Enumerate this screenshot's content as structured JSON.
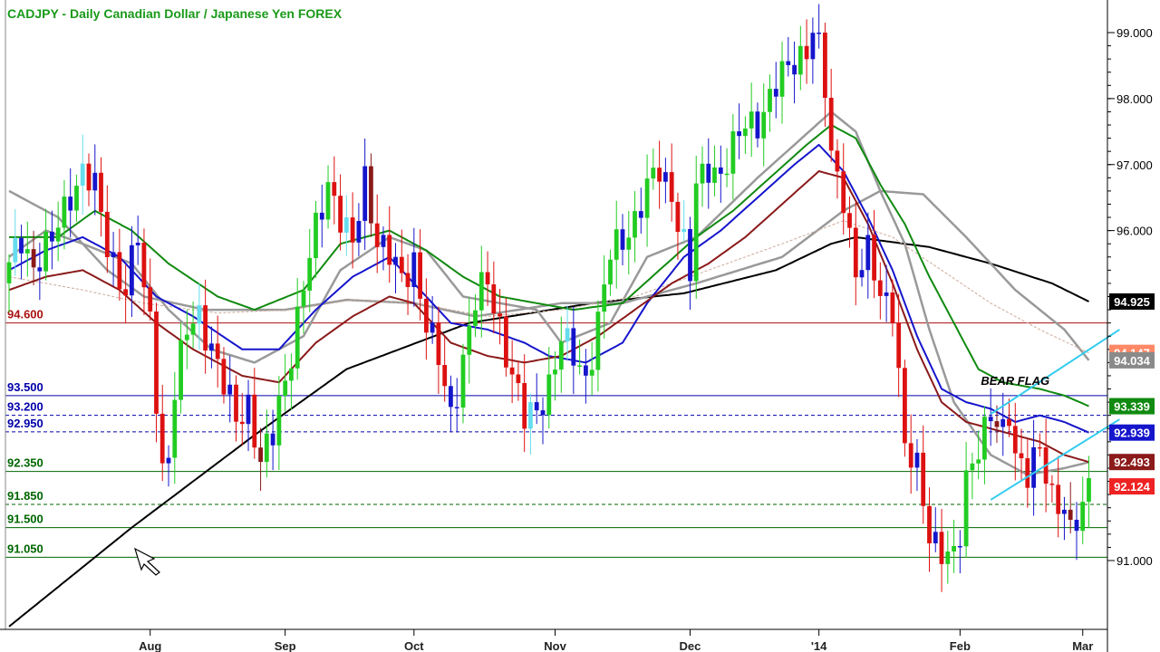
{
  "chart_data": {
    "type": "candlestick",
    "title": "CADJPY - Daily  Canadian Dollar / Japanese Yen  FOREX",
    "ylim": [
      90.0,
      99.2
    ],
    "y_ticks": [
      {
        "value": 99.0,
        "label": "99.000"
      },
      {
        "value": 98.0,
        "label": "98.000"
      },
      {
        "value": 97.0,
        "label": "97.000"
      },
      {
        "value": 96.0,
        "label": "96.000"
      },
      {
        "value": 91.0,
        "label": "91.000"
      }
    ],
    "x_ticks": [
      {
        "index": 23,
        "label": "Aug"
      },
      {
        "index": 45,
        "label": "Sep"
      },
      {
        "index": 66,
        "label": "Oct"
      },
      {
        "index": 89,
        "label": "Nov"
      },
      {
        "index": 111,
        "label": "Dec"
      },
      {
        "index": 132,
        "label": "'14"
      },
      {
        "index": 155,
        "label": "Feb"
      },
      {
        "index": 175,
        "label": "Mar"
      }
    ],
    "grid": false,
    "horizontal_levels": [
      {
        "value": 94.6,
        "label": "94.600",
        "color": "#aa1111",
        "style": "solid"
      },
      {
        "value": 93.5,
        "label": "93.500",
        "color": "#0000aa",
        "style": "solid"
      },
      {
        "value": 93.2,
        "label": "93.200",
        "color": "#0000aa",
        "style": "dashed"
      },
      {
        "value": 92.95,
        "label": "92.950",
        "color": "#0000aa",
        "style": "dashed"
      },
      {
        "value": 92.35,
        "label": "92.350",
        "color": "#006600",
        "style": "solid"
      },
      {
        "value": 91.85,
        "label": "91.850",
        "color": "#006600",
        "style": "dashed"
      },
      {
        "value": 91.5,
        "label": "91.500",
        "color": "#006600",
        "style": "solid"
      },
      {
        "value": 91.05,
        "label": "91.050",
        "color": "#006600",
        "style": "solid"
      }
    ],
    "price_tags": [
      {
        "value": 94.925,
        "label": "94.925",
        "color": "#000000"
      },
      {
        "value": 94.147,
        "label": "94.147",
        "color": "#ff8866"
      },
      {
        "value": 94.034,
        "label": "94.034",
        "color": "#8a8a8a"
      },
      {
        "value": 93.339,
        "label": "93.339",
        "color": "#108a10"
      },
      {
        "value": 92.939,
        "label": "92.939",
        "color": "#1515cc"
      },
      {
        "value": 92.493,
        "label": "92.493",
        "color": "#8b1a1a"
      },
      {
        "value": 92.124,
        "label": "92.124",
        "color": "#ee2222"
      }
    ],
    "annotations": [
      {
        "text": "BEAR FLAG",
        "index": 164,
        "value": 93.66
      }
    ],
    "channel": [
      {
        "from": [
          160,
          93.22
        ],
        "to": [
          181,
          94.5
        ],
        "color": "#33ccee"
      },
      {
        "from": [
          160,
          91.92
        ],
        "to": [
          181,
          93.14
        ],
        "color": "#33ccee"
      }
    ],
    "candle_colors": {
      "up_strong": "#22cc22",
      "up_weak": "#66ddee",
      "down_strong": "#dd1111",
      "down_weak": "#8b1a1a",
      "neutral": "#1515cc"
    },
    "close_anchors": [
      [
        0,
        95.4
      ],
      [
        2,
        95.9
      ],
      [
        4,
        95.5
      ],
      [
        7,
        95.8
      ],
      [
        10,
        96.6
      ],
      [
        12,
        96.9
      ],
      [
        14,
        96.6
      ],
      [
        16,
        95.8
      ],
      [
        19,
        95.1
      ],
      [
        21,
        95.9
      ],
      [
        22,
        95.0
      ],
      [
        23,
        94.7
      ],
      [
        25,
        92.4
      ],
      [
        26,
        92.6
      ],
      [
        27,
        93.5
      ],
      [
        29,
        94.5
      ],
      [
        31,
        94.8
      ],
      [
        33,
        94.2
      ],
      [
        35,
        93.6
      ],
      [
        37,
        93.2
      ],
      [
        39,
        93.4
      ],
      [
        41,
        92.4
      ],
      [
        43,
        92.9
      ],
      [
        44,
        93.4
      ],
      [
        46,
        94.2
      ],
      [
        48,
        95.1
      ],
      [
        50,
        96.0
      ],
      [
        52,
        96.8
      ],
      [
        54,
        96.2
      ],
      [
        56,
        95.7
      ],
      [
        58,
        96.8
      ],
      [
        60,
        95.9
      ],
      [
        62,
        95.6
      ],
      [
        64,
        95.2
      ],
      [
        66,
        95.6
      ],
      [
        68,
        94.6
      ],
      [
        70,
        94.0
      ],
      [
        72,
        93.2
      ],
      [
        74,
        94.1
      ],
      [
        76,
        94.9
      ],
      [
        78,
        95.2
      ],
      [
        80,
        94.6
      ],
      [
        82,
        93.8
      ],
      [
        84,
        93.1
      ],
      [
        86,
        93.3
      ],
      [
        88,
        93.7
      ],
      [
        90,
        94.3
      ],
      [
        92,
        94.1
      ],
      [
        94,
        93.8
      ],
      [
        96,
        94.6
      ],
      [
        98,
        95.6
      ],
      [
        100,
        95.9
      ],
      [
        102,
        96.2
      ],
      [
        104,
        96.6
      ],
      [
        106,
        96.9
      ],
      [
        108,
        96.6
      ],
      [
        110,
        95.8
      ],
      [
        111,
        95.3
      ],
      [
        112,
        96.6
      ],
      [
        114,
        97.0
      ],
      [
        116,
        96.9
      ],
      [
        118,
        97.2
      ],
      [
        120,
        97.6
      ],
      [
        122,
        97.7
      ],
      [
        124,
        98.0
      ],
      [
        126,
        98.3
      ],
      [
        128,
        98.6
      ],
      [
        130,
        98.8
      ],
      [
        131,
        99.05
      ],
      [
        132,
        98.7
      ],
      [
        133,
        98.1
      ],
      [
        134,
        97.1
      ],
      [
        136,
        96.6
      ],
      [
        138,
        95.3
      ],
      [
        140,
        95.6
      ],
      [
        142,
        95.1
      ],
      [
        144,
        94.9
      ],
      [
        145,
        93.8
      ],
      [
        146,
        92.6
      ],
      [
        148,
        92.4
      ],
      [
        150,
        91.5
      ],
      [
        152,
        91.1
      ],
      [
        154,
        90.95
      ],
      [
        155,
        91.4
      ],
      [
        156,
        92.3
      ],
      [
        158,
        92.8
      ],
      [
        160,
        93.1
      ],
      [
        162,
        92.9
      ],
      [
        163,
        93.3
      ],
      [
        164,
        92.7
      ],
      [
        166,
        92.3
      ],
      [
        168,
        92.6
      ],
      [
        170,
        92.0
      ],
      [
        172,
        91.9
      ],
      [
        173,
        91.4
      ],
      [
        175,
        91.7
      ],
      [
        176,
        92.12
      ]
    ],
    "moving_averages": [
      {
        "color": "#000000",
        "width": 2,
        "points": [
          [
            0,
            90.0
          ],
          [
            20,
            91.5
          ],
          [
            40,
            92.9
          ],
          [
            55,
            93.9
          ],
          [
            75,
            94.6
          ],
          [
            95,
            94.9
          ],
          [
            110,
            95.05
          ],
          [
            125,
            95.4
          ],
          [
            134,
            95.8
          ],
          [
            138,
            95.9
          ],
          [
            150,
            95.75
          ],
          [
            160,
            95.5
          ],
          [
            170,
            95.2
          ],
          [
            176,
            94.925
          ]
        ]
      },
      {
        "color": "#999999",
        "width": 2.5,
        "points": [
          [
            0,
            96.6
          ],
          [
            8,
            96.2
          ],
          [
            16,
            95.4
          ],
          [
            22,
            95.0
          ],
          [
            32,
            94.8
          ],
          [
            45,
            94.8
          ],
          [
            55,
            94.95
          ],
          [
            66,
            94.9
          ],
          [
            76,
            94.7
          ],
          [
            90,
            94.9
          ],
          [
            100,
            94.9
          ],
          [
            112,
            95.2
          ],
          [
            126,
            95.6
          ],
          [
            136,
            96.3
          ],
          [
            142,
            96.6
          ],
          [
            149,
            96.55
          ],
          [
            156,
            95.9
          ],
          [
            164,
            95.1
          ],
          [
            172,
            94.5
          ],
          [
            176,
            94.034
          ]
        ]
      },
      {
        "color": "#999999",
        "width": 2.5,
        "points": [
          [
            0,
            95.6
          ],
          [
            6,
            96.0
          ],
          [
            12,
            95.8
          ],
          [
            20,
            95.5
          ],
          [
            26,
            94.8
          ],
          [
            33,
            94.2
          ],
          [
            40,
            94.0
          ],
          [
            48,
            94.4
          ],
          [
            54,
            95.4
          ],
          [
            62,
            95.9
          ],
          [
            68,
            95.7
          ],
          [
            74,
            95.0
          ],
          [
            80,
            94.9
          ],
          [
            86,
            94.8
          ],
          [
            90,
            94.3
          ],
          [
            98,
            94.6
          ],
          [
            104,
            95.6
          ],
          [
            112,
            95.9
          ],
          [
            122,
            96.8
          ],
          [
            128,
            97.3
          ],
          [
            134,
            97.8
          ],
          [
            138,
            97.5
          ],
          [
            142,
            96.6
          ],
          [
            146,
            95.8
          ],
          [
            150,
            94.5
          ],
          [
            154,
            93.4
          ],
          [
            160,
            92.6
          ],
          [
            166,
            92.3
          ],
          [
            172,
            92.4
          ],
          [
            176,
            92.49
          ]
        ]
      },
      {
        "color": "#ccaa99",
        "width": 1,
        "dashed": true,
        "points": [
          [
            0,
            95.3
          ],
          [
            12,
            95.1
          ],
          [
            22,
            94.9
          ],
          [
            34,
            94.75
          ],
          [
            46,
            94.8
          ],
          [
            56,
            94.95
          ],
          [
            66,
            94.9
          ],
          [
            78,
            94.7
          ],
          [
            90,
            94.8
          ],
          [
            102,
            95.0
          ],
          [
            114,
            95.4
          ],
          [
            126,
            95.8
          ],
          [
            136,
            96.15
          ],
          [
            144,
            95.9
          ],
          [
            152,
            95.4
          ],
          [
            160,
            94.9
          ],
          [
            168,
            94.5
          ],
          [
            176,
            94.147
          ]
        ]
      },
      {
        "color": "#108a10",
        "width": 2,
        "points": [
          [
            0,
            95.9
          ],
          [
            8,
            95.9
          ],
          [
            14,
            96.3
          ],
          [
            20,
            96.0
          ],
          [
            26,
            95.5
          ],
          [
            34,
            95.0
          ],
          [
            40,
            94.8
          ],
          [
            48,
            95.1
          ],
          [
            54,
            95.8
          ],
          [
            62,
            96.0
          ],
          [
            68,
            95.7
          ],
          [
            74,
            95.3
          ],
          [
            80,
            95.0
          ],
          [
            86,
            94.9
          ],
          [
            92,
            94.8
          ],
          [
            100,
            94.9
          ],
          [
            106,
            95.4
          ],
          [
            112,
            95.9
          ],
          [
            118,
            96.3
          ],
          [
            124,
            96.8
          ],
          [
            130,
            97.3
          ],
          [
            134,
            97.6
          ],
          [
            138,
            97.4
          ],
          [
            142,
            96.7
          ],
          [
            146,
            96.1
          ],
          [
            150,
            95.3
          ],
          [
            154,
            94.6
          ],
          [
            158,
            93.9
          ],
          [
            162,
            93.7
          ],
          [
            168,
            93.6
          ],
          [
            172,
            93.5
          ],
          [
            176,
            93.339
          ]
        ]
      },
      {
        "color": "#1515cc",
        "width": 2,
        "points": [
          [
            0,
            95.4
          ],
          [
            6,
            95.7
          ],
          [
            12,
            95.9
          ],
          [
            18,
            95.6
          ],
          [
            24,
            95.0
          ],
          [
            30,
            94.7
          ],
          [
            38,
            94.2
          ],
          [
            44,
            94.2
          ],
          [
            50,
            94.8
          ],
          [
            56,
            95.3
          ],
          [
            62,
            95.6
          ],
          [
            66,
            95.2
          ],
          [
            72,
            94.6
          ],
          [
            78,
            94.5
          ],
          [
            84,
            94.3
          ],
          [
            88,
            94.1
          ],
          [
            94,
            94.0
          ],
          [
            100,
            94.3
          ],
          [
            104,
            94.9
          ],
          [
            110,
            95.6
          ],
          [
            116,
            96.0
          ],
          [
            122,
            96.5
          ],
          [
            128,
            97.0
          ],
          [
            132,
            97.3
          ],
          [
            136,
            96.9
          ],
          [
            140,
            96.2
          ],
          [
            144,
            95.4
          ],
          [
            148,
            94.4
          ],
          [
            152,
            93.6
          ],
          [
            156,
            93.4
          ],
          [
            160,
            93.3
          ],
          [
            164,
            93.1
          ],
          [
            168,
            93.2
          ],
          [
            172,
            93.1
          ],
          [
            176,
            92.939
          ]
        ]
      },
      {
        "color": "#8b1a1a",
        "width": 2,
        "points": [
          [
            0,
            95.1
          ],
          [
            6,
            95.3
          ],
          [
            12,
            95.4
          ],
          [
            18,
            95.1
          ],
          [
            24,
            94.6
          ],
          [
            30,
            94.2
          ],
          [
            38,
            93.8
          ],
          [
            44,
            93.7
          ],
          [
            50,
            94.3
          ],
          [
            56,
            94.7
          ],
          [
            62,
            95.0
          ],
          [
            66,
            94.9
          ],
          [
            72,
            94.3
          ],
          [
            78,
            94.1
          ],
          [
            84,
            94.0
          ],
          [
            90,
            94.1
          ],
          [
            96,
            94.4
          ],
          [
            102,
            94.8
          ],
          [
            108,
            95.2
          ],
          [
            114,
            95.5
          ],
          [
            120,
            95.9
          ],
          [
            126,
            96.4
          ],
          [
            132,
            96.9
          ],
          [
            136,
            96.8
          ],
          [
            140,
            96.1
          ],
          [
            144,
            95.2
          ],
          [
            148,
            94.2
          ],
          [
            152,
            93.4
          ],
          [
            156,
            93.1
          ],
          [
            160,
            93.0
          ],
          [
            164,
            92.9
          ],
          [
            168,
            92.8
          ],
          [
            172,
            92.6
          ],
          [
            176,
            92.493
          ]
        ]
      }
    ]
  }
}
